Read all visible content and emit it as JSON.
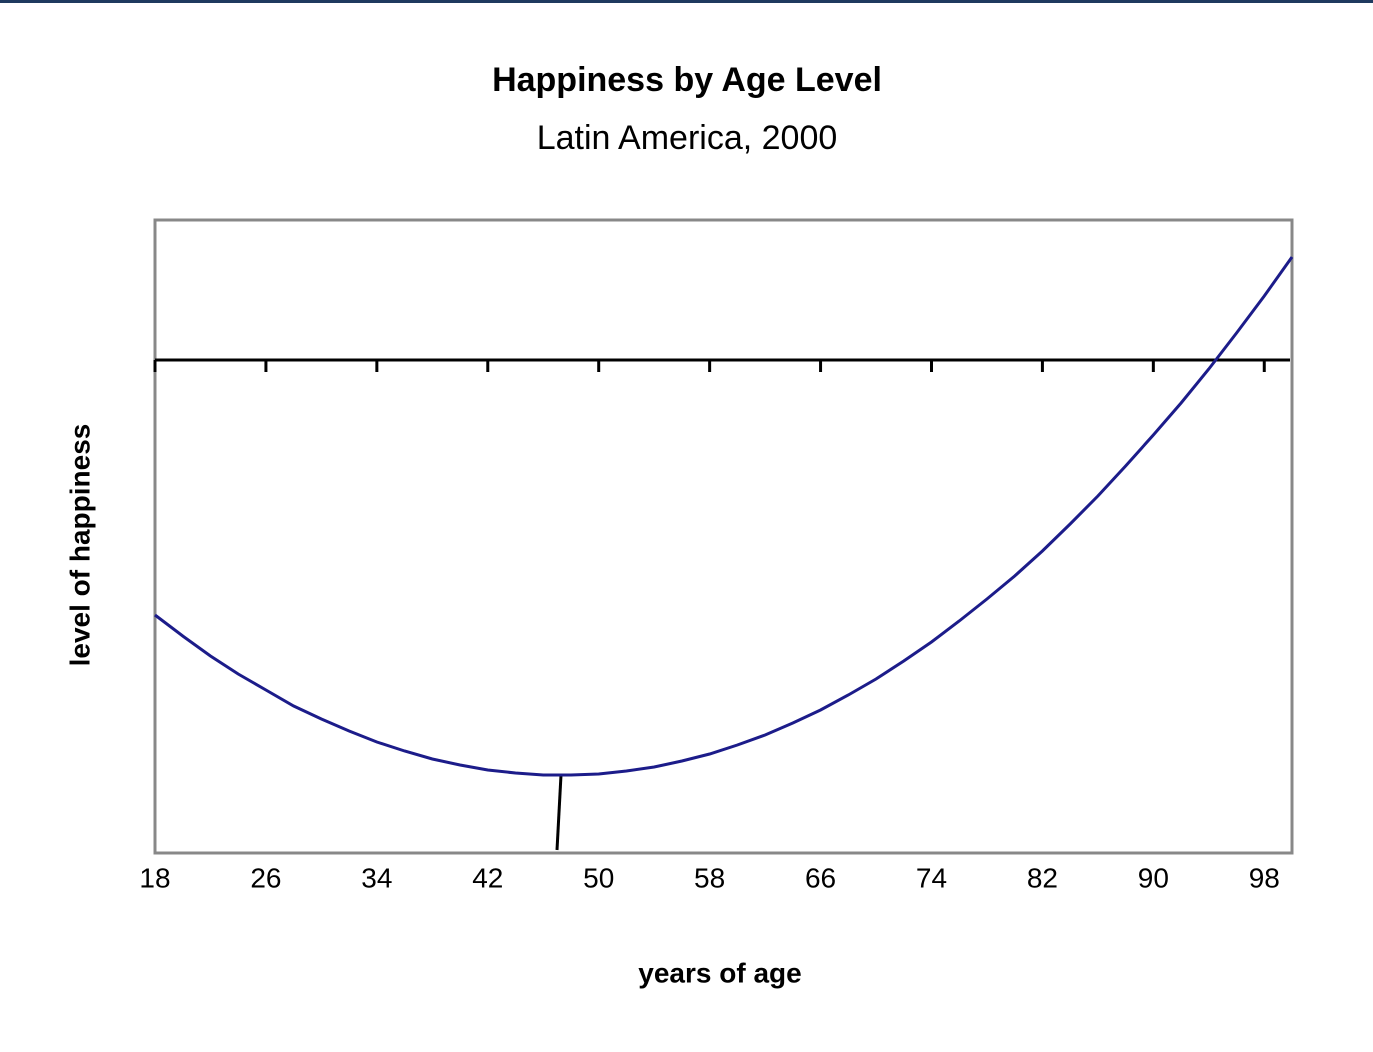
{
  "chart_data": {
    "type": "line",
    "title": "Happiness by Age Level",
    "subtitle": "Latin America, 2000",
    "xlabel": "years of age",
    "ylabel": "level of happiness",
    "x": [
      18,
      20,
      22,
      24,
      26,
      28,
      30,
      32,
      34,
      36,
      38,
      40,
      42,
      44,
      46,
      48,
      50,
      52,
      54,
      56,
      58,
      60,
      62,
      64,
      66,
      68,
      70,
      72,
      74,
      76,
      78,
      80,
      82,
      84,
      86,
      88,
      90,
      92,
      94,
      96,
      98,
      100
    ],
    "series": [
      {
        "color": "#1c1c8a",
        "values": [
          -2.55,
          -2.76,
          -2.96,
          -3.14,
          -3.3,
          -3.46,
          -3.59,
          -3.71,
          -3.82,
          -3.91,
          -3.99,
          -4.05,
          -4.1,
          -4.13,
          -4.15,
          -4.15,
          -4.14,
          -4.11,
          -4.07,
          -4.01,
          -3.94,
          -3.85,
          -3.75,
          -3.63,
          -3.5,
          -3.35,
          -3.19,
          -3.01,
          -2.82,
          -2.61,
          -2.39,
          -2.16,
          -1.91,
          -1.64,
          -1.36,
          -1.06,
          -0.75,
          -0.43,
          -0.09,
          0.27,
          0.64,
          1.03
        ]
      }
    ],
    "xlim": [
      18,
      100
    ],
    "xticks": [
      18,
      26,
      34,
      42,
      50,
      58,
      66,
      74,
      82,
      90,
      98
    ],
    "ylim": [
      -4.93,
      1.4
    ],
    "grid": false
  }
}
